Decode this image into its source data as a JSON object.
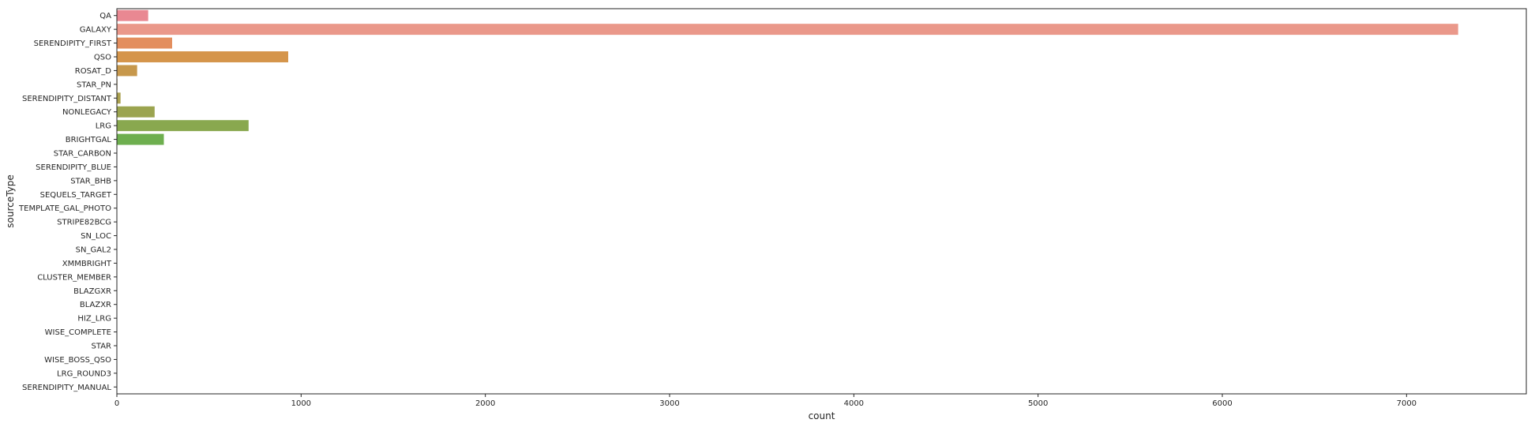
{
  "chart_data": {
    "type": "bar",
    "orientation": "horizontal",
    "title": "",
    "xlabel": "count",
    "ylabel": "sourceType",
    "xlim": [
      0,
      7650
    ],
    "xticks": [
      0,
      1000,
      2000,
      3000,
      4000,
      5000,
      6000,
      7000
    ],
    "xtick_labels": [
      "0",
      "1000",
      "2000",
      "3000",
      "4000",
      "5000",
      "6000",
      "7000"
    ],
    "grid": false,
    "categories": [
      "QA",
      "GALAXY",
      "SERENDIPITY_FIRST",
      "QSO",
      "ROSAT_D",
      "STAR_PN",
      "SERENDIPITY_DISTANT",
      "NONLEGACY",
      "LRG",
      "BRIGHTGAL",
      "STAR_CARBON",
      "SERENDIPITY_BLUE",
      "STAR_BHB",
      "SEQUELS_TARGET",
      "TEMPLATE_GAL_PHOTO",
      "STRIPE82BCG",
      "SN_LOC",
      "SN_GAL2",
      "XMMBRIGHT",
      "CLUSTER_MEMBER",
      "BLAZGXR",
      "BLAZXR",
      "HIZ_LRG",
      "WISE_COMPLETE",
      "STAR",
      "WISE_BOSS_QSO",
      "LRG_ROUND3",
      "SERENDIPITY_MANUAL"
    ],
    "values": [
      170,
      7280,
      300,
      930,
      110,
      3,
      20,
      205,
      715,
      255,
      2,
      2,
      2,
      2,
      1,
      1,
      1,
      1,
      1,
      1,
      1,
      1,
      1,
      1,
      1,
      1,
      1,
      1
    ],
    "colors": [
      "#e98892",
      "#ea988a",
      "#e38e5e",
      "#d5954b",
      "#c7984c",
      "#b89c4d",
      "#aaa04e",
      "#9ba44f",
      "#89a84f",
      "#6eaf4f",
      "#50b35f",
      "#4fb47e",
      "#51b391",
      "#52b29f",
      "#53b1ab",
      "#55b0b7",
      "#56afc2",
      "#5bacd0",
      "#6ea8e1",
      "#8da2ea",
      "#a69be9",
      "#b994e7",
      "#cd8ae6",
      "#e17ee2",
      "#e583cf",
      "#e588c0",
      "#e68bb1",
      "#e78ca3"
    ]
  }
}
